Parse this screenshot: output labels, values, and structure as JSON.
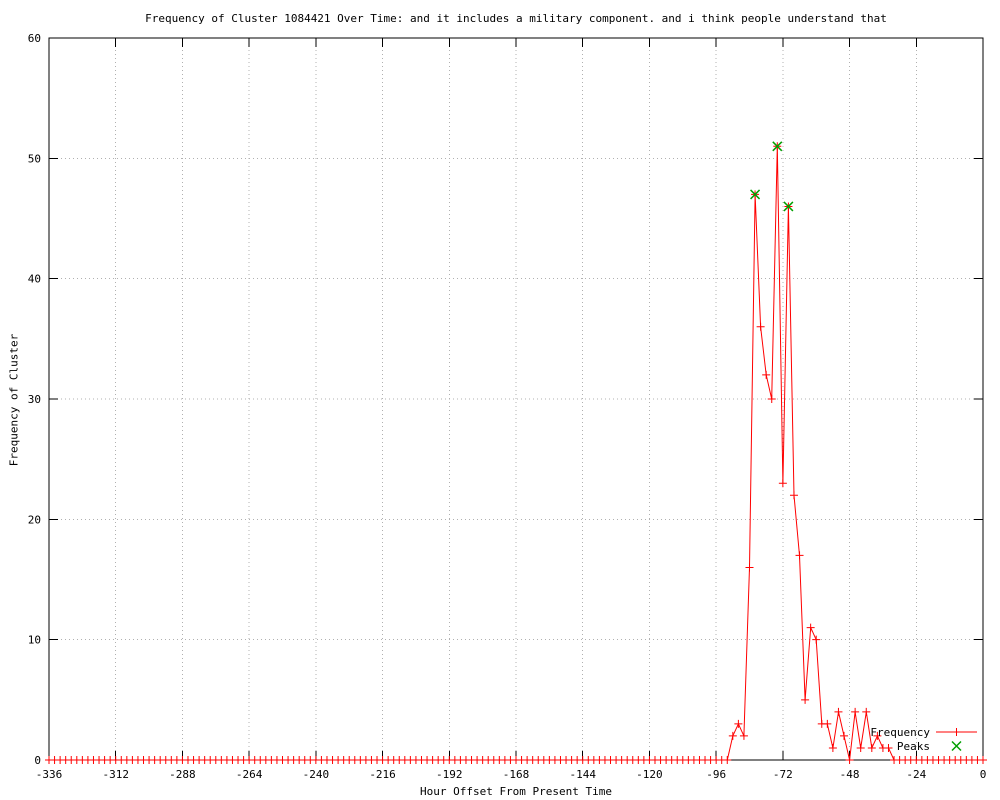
{
  "window": {
    "background": "#ffffff",
    "grid_color": "#b0b0b0",
    "border_color": "#000000"
  },
  "chart_data": {
    "type": "line",
    "title": "Frequency of Cluster 1084421 Over Time: and it includes a military component. and i think people understand that",
    "xlabel": "Hour Offset From Present Time",
    "ylabel": "Frequency of Cluster",
    "xlim": [
      -336,
      0
    ],
    "ylim": [
      0,
      60
    ],
    "x_ticks": [
      -336,
      -312,
      -288,
      -264,
      -240,
      -216,
      -192,
      -168,
      -144,
      -120,
      -96,
      -72,
      -48,
      -24,
      0
    ],
    "y_ticks": [
      0,
      10,
      20,
      30,
      40,
      50,
      60
    ],
    "grid": true,
    "legend": {
      "position": "bottom-right-inside",
      "entries": [
        {
          "label": "Frequency",
          "color": "#ff0000",
          "marker": "plus"
        },
        {
          "label": "Peaks",
          "color": "#00a000",
          "marker": "cross"
        }
      ]
    },
    "series": [
      {
        "name": "Frequency",
        "style": "linespoints",
        "color": "#ff0000",
        "marker": "plus",
        "x_start": -336,
        "x_step": 2,
        "x_end": 0,
        "baseline_value": 0,
        "nonzero_run": {
          "x_start": -90,
          "values": [
            2,
            3,
            2,
            16,
            47,
            36,
            32,
            30,
            51,
            23,
            46,
            22,
            17,
            5,
            11,
            10,
            3,
            3,
            1,
            4,
            2,
            0,
            4,
            1,
            4,
            1,
            2,
            1,
            1
          ]
        }
      },
      {
        "name": "Peaks",
        "style": "points",
        "color": "#00a000",
        "marker": "cross",
        "points": [
          [
            -82,
            47
          ],
          [
            -74,
            51
          ],
          [
            -70,
            46
          ]
        ]
      }
    ]
  }
}
